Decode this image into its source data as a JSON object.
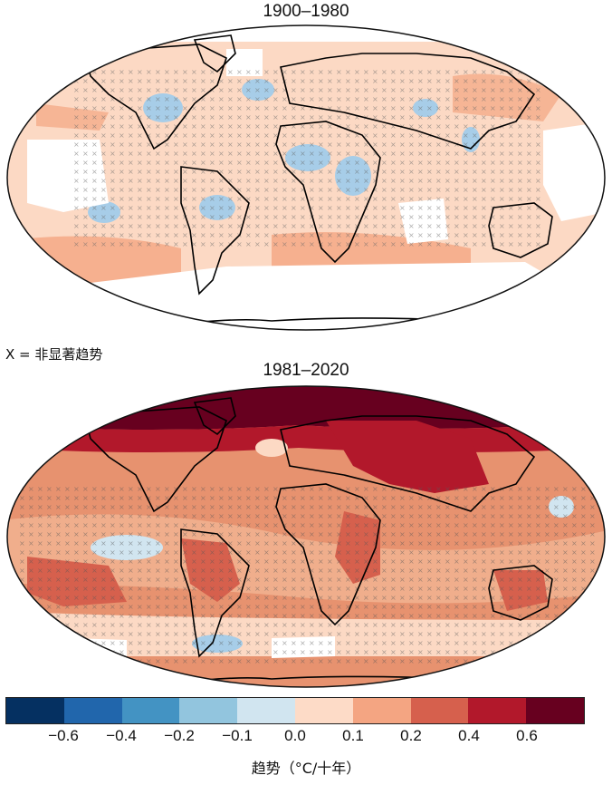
{
  "maps": [
    {
      "title": "1900–1980",
      "background_color": "#fcd9c4",
      "ocean_tint": "#f9cbb0",
      "land_warm": "#f4a582",
      "cold": "#a7cde8"
    },
    {
      "title": "1981–2020",
      "background_color": "#e7926f",
      "ocean_tint": "#f0ae8c",
      "land_warm": "#d6604d",
      "hot": "#b2182b",
      "arctic": "#67001f",
      "cold": "#a7cde8"
    }
  ],
  "legend_note": "X = 非显著趋势",
  "colorbar": {
    "colors": [
      "#053061",
      "#2166ac",
      "#4393c3",
      "#92c5de",
      "#d1e5f0",
      "#fddbc7",
      "#f4a582",
      "#d6604d",
      "#b2182b",
      "#67001f"
    ],
    "ticks": [
      "−0.6",
      "−0.4",
      "−0.2",
      "−0.1",
      "0.0",
      "0.1",
      "0.2",
      "0.4",
      "0.6"
    ],
    "label": "趋势（°C/十年）"
  },
  "icons": {
    "hatch_marker": "x-mark-icon"
  }
}
